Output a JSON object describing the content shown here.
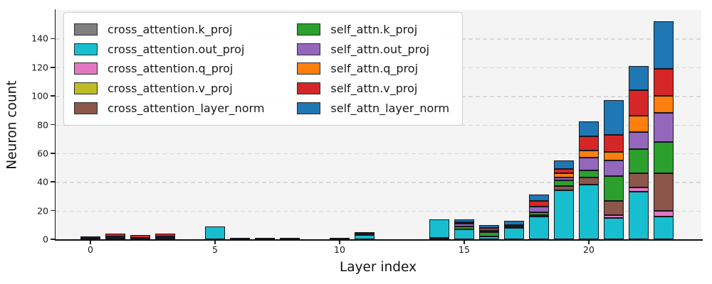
{
  "figure": {
    "background": "#ffffff",
    "plot_background": "#f4f4f5",
    "grid_color": "#d7d7d9",
    "axis_color": "#111111",
    "bar_edge_color": "#17171d"
  },
  "chart_data": {
    "type": "bar",
    "stacked": true,
    "title": "",
    "xlabel": "Layer index",
    "ylabel": "Neuron count",
    "x": [
      0,
      1,
      2,
      3,
      4,
      5,
      6,
      7,
      8,
      9,
      10,
      11,
      12,
      13,
      14,
      15,
      16,
      17,
      18,
      19,
      20,
      21,
      22,
      23
    ],
    "xticks": [
      0,
      5,
      10,
      15,
      20
    ],
    "yticks": [
      0,
      20,
      40,
      60,
      80,
      100,
      120,
      140
    ],
    "ylim": [
      0,
      160
    ],
    "grid": "horizontal dashed",
    "legend_position": "upper left, 2 columns",
    "series": [
      {
        "name": "cross_attention.k_proj",
        "color": "#7f7f7f",
        "values": [
          0,
          0,
          0,
          0,
          0,
          0,
          0,
          1,
          0,
          0,
          1,
          0,
          0,
          0,
          1,
          0,
          0,
          0,
          0,
          0,
          0,
          0,
          0,
          0
        ]
      },
      {
        "name": "cross_attention.out_proj",
        "color": "#17becf",
        "values": [
          1,
          0,
          0,
          0,
          0,
          9,
          0,
          0,
          1,
          0,
          0,
          3,
          0,
          0,
          13,
          7,
          2,
          8,
          16,
          34,
          38,
          15,
          33,
          16
        ]
      },
      {
        "name": "cross_attention.q_proj",
        "color": "#e377c2",
        "values": [
          0,
          0,
          0,
          0,
          0,
          0,
          0,
          0,
          0,
          0,
          0,
          0,
          0,
          0,
          0,
          0,
          0,
          0,
          0,
          0,
          0,
          2,
          3,
          4
        ]
      },
      {
        "name": "cross_attention.v_proj",
        "color": "#bcbd22",
        "values": [
          1,
          1,
          1,
          1,
          0,
          0,
          1,
          0,
          0,
          0,
          0,
          0,
          0,
          0,
          0,
          0,
          0,
          0,
          0,
          0,
          0,
          0,
          0,
          0
        ]
      },
      {
        "name": "cross_attention_layer_norm",
        "color": "#8c564b",
        "values": [
          0,
          1,
          0,
          0,
          0,
          0,
          0,
          0,
          0,
          0,
          0,
          0,
          0,
          0,
          0,
          0,
          0,
          0,
          1,
          3,
          5,
          10,
          10,
          26
        ]
      },
      {
        "name": "self_attn.k_proj",
        "color": "#2ca02c",
        "values": [
          0,
          0,
          0,
          1,
          0,
          0,
          0,
          0,
          0,
          0,
          0,
          1,
          0,
          0,
          0,
          2,
          3,
          1,
          2,
          4,
          5,
          17,
          17,
          22
        ]
      },
      {
        "name": "self_attn.out_proj",
        "color": "#9467bd",
        "values": [
          0,
          0,
          0,
          0,
          0,
          0,
          0,
          0,
          0,
          0,
          0,
          0,
          0,
          0,
          0,
          2,
          1,
          1,
          4,
          2,
          9,
          11,
          12,
          20
        ]
      },
      {
        "name": "self_attn.q_proj",
        "color": "#ff7f0e",
        "values": [
          0,
          0,
          0,
          0,
          0,
          0,
          0,
          0,
          0,
          0,
          0,
          0,
          0,
          0,
          0,
          0,
          0,
          0,
          0,
          3,
          5,
          6,
          11,
          12
        ]
      },
      {
        "name": "self_attn.v_proj",
        "color": "#d62728",
        "values": [
          0,
          2,
          2,
          2,
          0,
          0,
          0,
          0,
          0,
          0,
          0,
          0,
          0,
          0,
          0,
          1,
          2,
          0,
          4,
          3,
          10,
          12,
          18,
          19
        ]
      },
      {
        "name": "self_attn_layer_norm",
        "color": "#1f77b4",
        "values": [
          0,
          0,
          0,
          0,
          0,
          0,
          0,
          0,
          0,
          0,
          0,
          1,
          0,
          0,
          0,
          2,
          2,
          3,
          4,
          6,
          10,
          24,
          17,
          33
        ]
      }
    ],
    "stack_totals": [
      2,
      4,
      3,
      4,
      0,
      9,
      1,
      1,
      1,
      0,
      1,
      5,
      0,
      0,
      14,
      14,
      10,
      13,
      31,
      55,
      82,
      97,
      121,
      152
    ]
  }
}
